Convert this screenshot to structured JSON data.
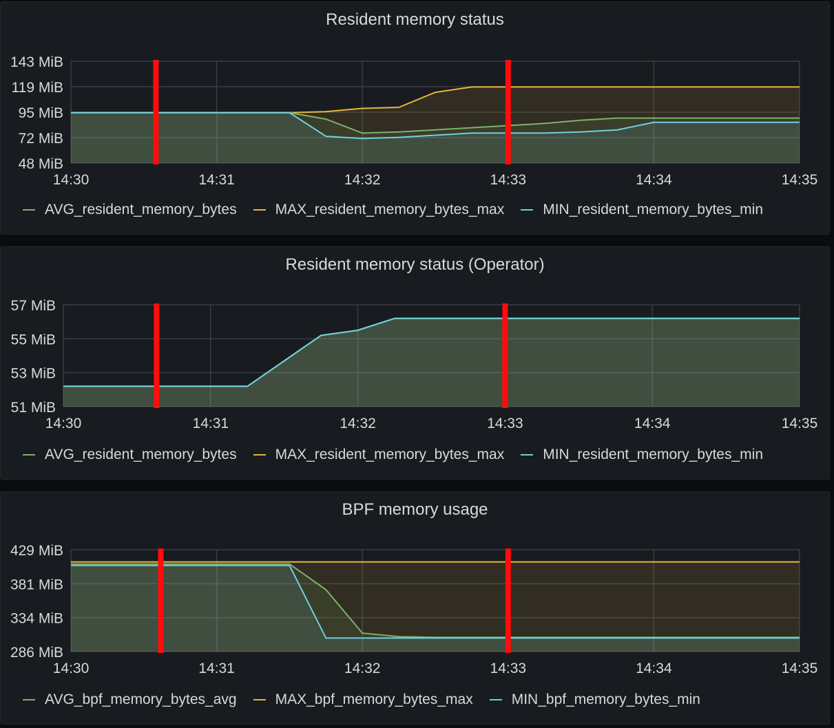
{
  "panels": [
    {
      "title": "Resident memory status",
      "legend": [
        {
          "label": "AVG_resident_memory_bytes",
          "color": "#7eb26d"
        },
        {
          "label": "MAX_resident_memory_bytes_max",
          "color": "#eab839"
        },
        {
          "label": "MIN_resident_memory_bytes_min",
          "color": "#6ed0e0"
        }
      ]
    },
    {
      "title": "Resident memory status (Operator)",
      "legend": [
        {
          "label": "AVG_resident_memory_bytes",
          "color": "#7eb26d"
        },
        {
          "label": "MAX_resident_memory_bytes_max",
          "color": "#eab839"
        },
        {
          "label": "MIN_resident_memory_bytes_min",
          "color": "#6ed0e0"
        }
      ]
    },
    {
      "title": "BPF memory usage",
      "legend": [
        {
          "label": "AVG_bpf_memory_bytes_avg",
          "color": "#7eb26d"
        },
        {
          "label": "MAX_bpf_memory_bytes_max",
          "color": "#eab839"
        },
        {
          "label": "MIN_bpf_memory_bytes_min",
          "color": "#6ed0e0"
        }
      ]
    }
  ],
  "chart_data": [
    {
      "type": "area",
      "title": "Resident memory status",
      "x": [
        "14:30",
        "14:30:15",
        "14:30:30",
        "14:30:45",
        "14:31",
        "14:31:15",
        "14:31:30",
        "14:31:45",
        "14:32",
        "14:32:15",
        "14:32:30",
        "14:32:45",
        "14:33",
        "14:33:15",
        "14:33:30",
        "14:33:45",
        "14:34",
        "14:34:15",
        "14:34:30",
        "14:34:45",
        "14:35"
      ],
      "xticks": [
        "14:30",
        "14:31",
        "14:32",
        "14:33",
        "14:34",
        "14:35"
      ],
      "yticks": [
        "48 MiB",
        "72 MiB",
        "95 MiB",
        "119 MiB",
        "143 MiB"
      ],
      "ylim": [
        48,
        143
      ],
      "markers_x": [
        "14:30:35",
        "14:33:00"
      ],
      "series": [
        {
          "name": "AVG_resident_memory_bytes",
          "color": "#7eb26d",
          "values": [
            95,
            95,
            95,
            95,
            95,
            95,
            95,
            89,
            76,
            77,
            79,
            81,
            83,
            85,
            88,
            90,
            90,
            90,
            90,
            90,
            90
          ]
        },
        {
          "name": "MAX_resident_memory_bytes_max",
          "color": "#eab839",
          "values": [
            95,
            95,
            95,
            95,
            95,
            95,
            95,
            96,
            99,
            100,
            114,
            119,
            119,
            119,
            119,
            119,
            119,
            119,
            119,
            119,
            119
          ]
        },
        {
          "name": "MIN_resident_memory_bytes_min",
          "color": "#6ed0e0",
          "values": [
            95,
            95,
            95,
            95,
            95,
            95,
            95,
            73,
            71,
            72,
            74,
            76,
            76,
            76,
            77,
            79,
            86,
            86,
            86,
            86,
            86
          ]
        }
      ],
      "grid": true,
      "legend_position": "bottom"
    },
    {
      "type": "area",
      "title": "Resident memory status (Operator)",
      "x": [
        "14:30",
        "14:30:15",
        "14:30:30",
        "14:30:45",
        "14:31",
        "14:31:15",
        "14:31:30",
        "14:31:45",
        "14:32",
        "14:32:15",
        "14:32:30",
        "14:32:45",
        "14:33",
        "14:33:15",
        "14:33:30",
        "14:33:45",
        "14:34",
        "14:34:15",
        "14:34:30",
        "14:34:45",
        "14:35"
      ],
      "xticks": [
        "14:30",
        "14:31",
        "14:32",
        "14:33",
        "14:34",
        "14:35"
      ],
      "yticks": [
        "51 MiB",
        "53 MiB",
        "55 MiB",
        "57 MiB"
      ],
      "ylim": [
        51,
        57
      ],
      "markers_x": [
        "14:30:38",
        "14:33:00"
      ],
      "series": [
        {
          "name": "AVG_resident_memory_bytes",
          "color": "#7eb26d",
          "values": [
            52.2,
            52.2,
            52.2,
            52.2,
            52.2,
            52.2,
            53.7,
            55.2,
            55.5,
            56.2,
            56.2,
            56.2,
            56.2,
            56.2,
            56.2,
            56.2,
            56.2,
            56.2,
            56.2,
            56.2,
            56.2
          ]
        },
        {
          "name": "MAX_resident_memory_bytes_max",
          "color": "#eab839",
          "values": [
            52.2,
            52.2,
            52.2,
            52.2,
            52.2,
            52.2,
            53.7,
            55.2,
            55.5,
            56.2,
            56.2,
            56.2,
            56.2,
            56.2,
            56.2,
            56.2,
            56.2,
            56.2,
            56.2,
            56.2,
            56.2
          ]
        },
        {
          "name": "MIN_resident_memory_bytes_min",
          "color": "#6ed0e0",
          "values": [
            52.2,
            52.2,
            52.2,
            52.2,
            52.2,
            52.2,
            53.7,
            55.2,
            55.5,
            56.2,
            56.2,
            56.2,
            56.2,
            56.2,
            56.2,
            56.2,
            56.2,
            56.2,
            56.2,
            56.2,
            56.2
          ]
        }
      ],
      "grid": true,
      "legend_position": "bottom"
    },
    {
      "type": "area",
      "title": "BPF memory usage",
      "x": [
        "14:30",
        "14:30:15",
        "14:30:30",
        "14:30:45",
        "14:31",
        "14:31:15",
        "14:31:30",
        "14:31:45",
        "14:32",
        "14:32:15",
        "14:32:30",
        "14:32:45",
        "14:33",
        "14:33:15",
        "14:33:30",
        "14:33:45",
        "14:34",
        "14:34:15",
        "14:34:30",
        "14:34:45",
        "14:35"
      ],
      "xticks": [
        "14:30",
        "14:31",
        "14:32",
        "14:33",
        "14:34",
        "14:35"
      ],
      "yticks": [
        "286 MiB",
        "334 MiB",
        "381 MiB",
        "429 MiB"
      ],
      "ylim": [
        286,
        429
      ],
      "markers_x": [
        "14:30:37",
        "14:33:00"
      ],
      "series": [
        {
          "name": "AVG_bpf_memory_bytes_avg",
          "color": "#7eb26d",
          "values": [
            409,
            409,
            409,
            409,
            409,
            409,
            409,
            373,
            312,
            307,
            306,
            306,
            306,
            306,
            306,
            306,
            306,
            306,
            306,
            306,
            306
          ]
        },
        {
          "name": "MAX_bpf_memory_bytes_max",
          "color": "#eab839",
          "values": [
            412,
            412,
            412,
            412,
            412,
            412,
            412,
            412,
            412,
            412,
            412,
            412,
            412,
            412,
            412,
            412,
            412,
            412,
            412,
            412,
            412
          ]
        },
        {
          "name": "MIN_bpf_memory_bytes_min",
          "color": "#6ed0e0",
          "values": [
            407,
            407,
            407,
            407,
            407,
            407,
            407,
            305,
            305,
            305,
            305,
            305,
            305,
            305,
            305,
            305,
            305,
            305,
            305,
            305,
            305
          ]
        }
      ],
      "grid": true,
      "legend_position": "bottom"
    }
  ]
}
